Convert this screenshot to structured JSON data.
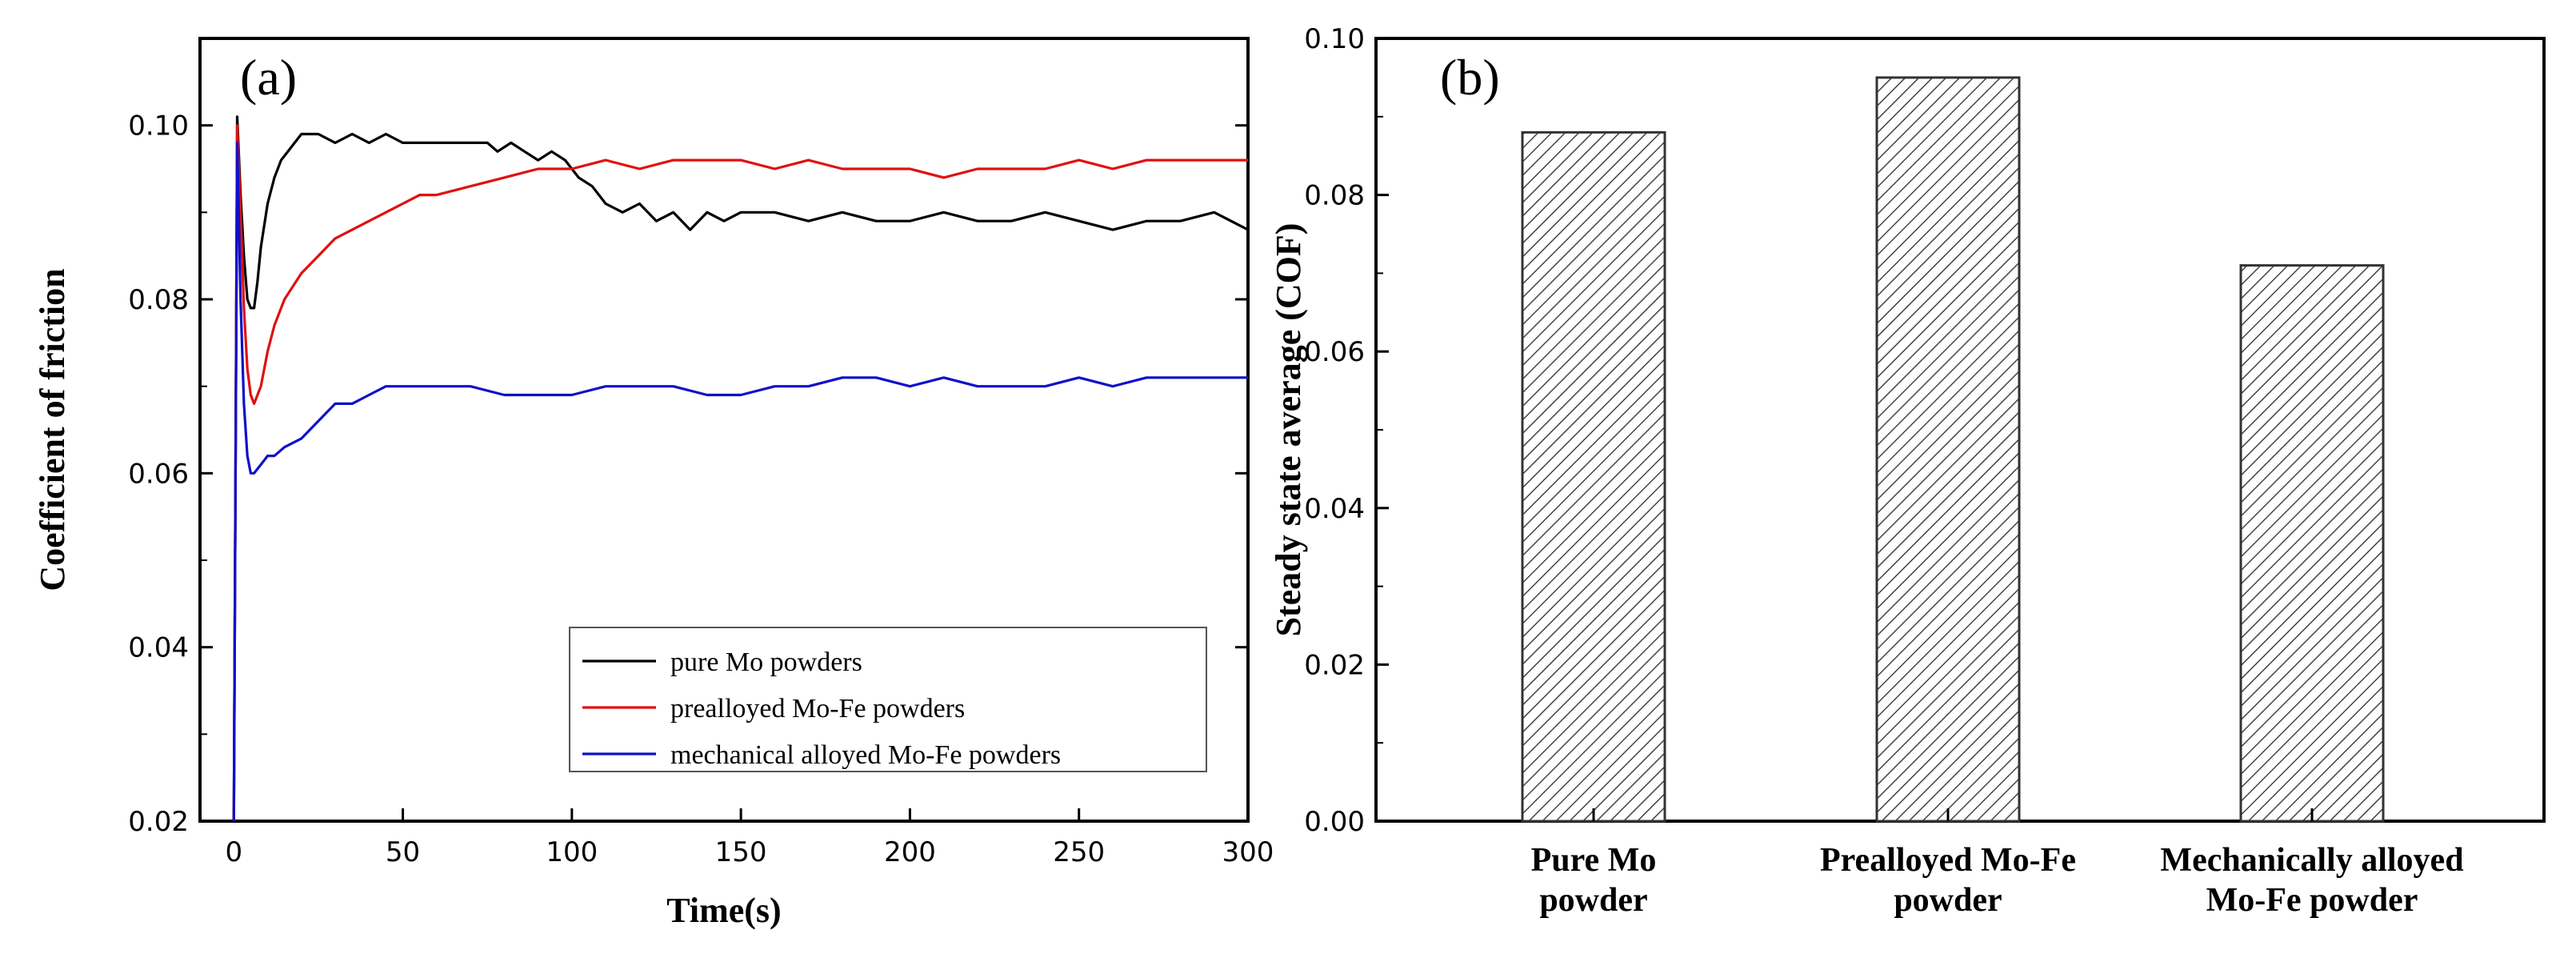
{
  "chart_data": [
    {
      "type": "line",
      "panel_label": "(a)",
      "title": "",
      "xlabel": "Time(s)",
      "ylabel": "Coefficient of friction",
      "xlim": [
        -10,
        300
      ],
      "ylim": [
        0.02,
        0.11
      ],
      "xticks": [
        0,
        50,
        100,
        150,
        200,
        250,
        300
      ],
      "xtick_labels": [
        "0",
        "50",
        "100",
        "150",
        "200",
        "250",
        "300"
      ],
      "yticks": [
        0.02,
        0.04,
        0.06,
        0.08,
        0.1
      ],
      "ytick_labels": [
        "0.02",
        "0.04",
        "0.06",
        "0.08",
        "0.10"
      ],
      "grid": false,
      "legend_position": "bottom-right",
      "series": [
        {
          "name": "pure Mo powders",
          "color": "#000000",
          "points": [
            [
              0,
              0.02
            ],
            [
              1,
              0.101
            ],
            [
              2,
              0.092
            ],
            [
              3,
              0.085
            ],
            [
              4,
              0.08
            ],
            [
              5,
              0.079
            ],
            [
              6,
              0.079
            ],
            [
              7,
              0.082
            ],
            [
              8,
              0.086
            ],
            [
              10,
              0.091
            ],
            [
              12,
              0.094
            ],
            [
              14,
              0.096
            ],
            [
              16,
              0.097
            ],
            [
              18,
              0.098
            ],
            [
              20,
              0.099
            ],
            [
              25,
              0.099
            ],
            [
              30,
              0.098
            ],
            [
              35,
              0.099
            ],
            [
              40,
              0.098
            ],
            [
              45,
              0.099
            ],
            [
              50,
              0.098
            ],
            [
              55,
              0.098
            ],
            [
              60,
              0.098
            ],
            [
              65,
              0.098
            ],
            [
              70,
              0.098
            ],
            [
              75,
              0.098
            ],
            [
              78,
              0.097
            ],
            [
              82,
              0.098
            ],
            [
              86,
              0.097
            ],
            [
              90,
              0.096
            ],
            [
              94,
              0.097
            ],
            [
              98,
              0.096
            ],
            [
              102,
              0.094
            ],
            [
              106,
              0.093
            ],
            [
              110,
              0.091
            ],
            [
              115,
              0.09
            ],
            [
              120,
              0.091
            ],
            [
              125,
              0.089
            ],
            [
              130,
              0.09
            ],
            [
              135,
              0.088
            ],
            [
              140,
              0.09
            ],
            [
              145,
              0.089
            ],
            [
              150,
              0.09
            ],
            [
              160,
              0.09
            ],
            [
              170,
              0.089
            ],
            [
              180,
              0.09
            ],
            [
              190,
              0.089
            ],
            [
              200,
              0.089
            ],
            [
              210,
              0.09
            ],
            [
              220,
              0.089
            ],
            [
              230,
              0.089
            ],
            [
              240,
              0.09
            ],
            [
              250,
              0.089
            ],
            [
              260,
              0.088
            ],
            [
              270,
              0.089
            ],
            [
              280,
              0.089
            ],
            [
              290,
              0.09
            ],
            [
              300,
              0.088
            ]
          ]
        },
        {
          "name": "prealloyed Mo-Fe powders",
          "color": "#e01010",
          "points": [
            [
              0,
              0.02
            ],
            [
              1,
              0.1
            ],
            [
              2,
              0.09
            ],
            [
              3,
              0.079
            ],
            [
              4,
              0.072
            ],
            [
              5,
              0.069
            ],
            [
              6,
              0.068
            ],
            [
              8,
              0.07
            ],
            [
              10,
              0.074
            ],
            [
              12,
              0.077
            ],
            [
              15,
              0.08
            ],
            [
              20,
              0.083
            ],
            [
              25,
              0.085
            ],
            [
              30,
              0.087
            ],
            [
              35,
              0.088
            ],
            [
              40,
              0.089
            ],
            [
              45,
              0.09
            ],
            [
              50,
              0.091
            ],
            [
              55,
              0.092
            ],
            [
              60,
              0.092
            ],
            [
              70,
              0.093
            ],
            [
              80,
              0.094
            ],
            [
              90,
              0.095
            ],
            [
              100,
              0.095
            ],
            [
              110,
              0.096
            ],
            [
              120,
              0.095
            ],
            [
              130,
              0.096
            ],
            [
              140,
              0.096
            ],
            [
              150,
              0.096
            ],
            [
              160,
              0.095
            ],
            [
              170,
              0.096
            ],
            [
              180,
              0.095
            ],
            [
              190,
              0.095
            ],
            [
              200,
              0.095
            ],
            [
              210,
              0.094
            ],
            [
              220,
              0.095
            ],
            [
              230,
              0.095
            ],
            [
              240,
              0.095
            ],
            [
              250,
              0.096
            ],
            [
              260,
              0.095
            ],
            [
              270,
              0.096
            ],
            [
              280,
              0.096
            ],
            [
              290,
              0.096
            ],
            [
              300,
              0.096
            ]
          ]
        },
        {
          "name": "mechanical alloyed Mo-Fe powders",
          "color": "#1010c8",
          "points": [
            [
              0,
              0.02
            ],
            [
              1,
              0.098
            ],
            [
              2,
              0.08
            ],
            [
              3,
              0.068
            ],
            [
              4,
              0.062
            ],
            [
              5,
              0.06
            ],
            [
              6,
              0.06
            ],
            [
              8,
              0.061
            ],
            [
              10,
              0.062
            ],
            [
              12,
              0.062
            ],
            [
              15,
              0.063
            ],
            [
              20,
              0.064
            ],
            [
              25,
              0.066
            ],
            [
              30,
              0.068
            ],
            [
              35,
              0.068
            ],
            [
              40,
              0.069
            ],
            [
              45,
              0.07
            ],
            [
              50,
              0.07
            ],
            [
              60,
              0.07
            ],
            [
              70,
              0.07
            ],
            [
              80,
              0.069
            ],
            [
              90,
              0.069
            ],
            [
              100,
              0.069
            ],
            [
              110,
              0.07
            ],
            [
              120,
              0.07
            ],
            [
              130,
              0.07
            ],
            [
              140,
              0.069
            ],
            [
              150,
              0.069
            ],
            [
              160,
              0.07
            ],
            [
              170,
              0.07
            ],
            [
              180,
              0.071
            ],
            [
              190,
              0.071
            ],
            [
              200,
              0.07
            ],
            [
              210,
              0.071
            ],
            [
              220,
              0.07
            ],
            [
              230,
              0.07
            ],
            [
              240,
              0.07
            ],
            [
              250,
              0.071
            ],
            [
              260,
              0.07
            ],
            [
              270,
              0.071
            ],
            [
              280,
              0.071
            ],
            [
              290,
              0.071
            ],
            [
              300,
              0.071
            ]
          ]
        }
      ]
    },
    {
      "type": "bar",
      "panel_label": "(b)",
      "title": "",
      "xlabel": "",
      "ylabel": "Steady state average (COF)",
      "categories": [
        [
          "Pure Mo",
          "powder"
        ],
        [
          "Prealloyed Mo-Fe",
          "powder"
        ],
        [
          "Mechanically alloyed",
          "Mo-Fe powder"
        ]
      ],
      "values": [
        0.088,
        0.095,
        0.071
      ],
      "ylim": [
        0.0,
        0.1
      ],
      "yticks": [
        0.0,
        0.02,
        0.04,
        0.06,
        0.08,
        0.1
      ],
      "ytick_labels": [
        "0.00",
        "0.02",
        "0.04",
        "0.06",
        "0.08",
        "0.10"
      ],
      "bar_fill": "diagonal hatch",
      "grid": false
    }
  ]
}
